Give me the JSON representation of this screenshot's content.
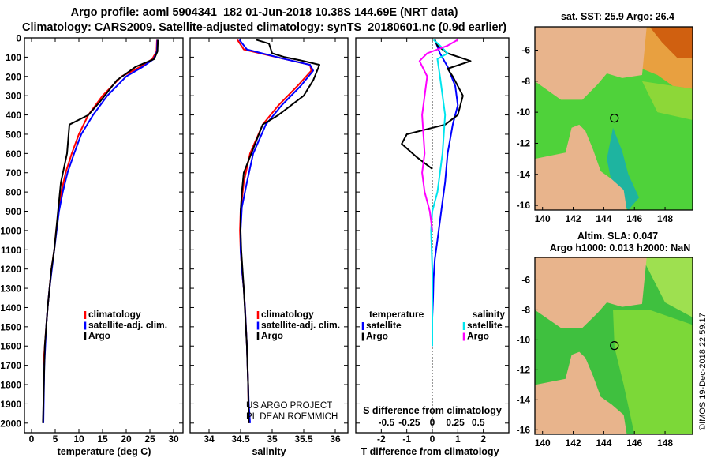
{
  "header": {
    "title_line1": "Argo profile: aoml 5904341_182 01-Jun-2018 10.38S 144.69E (NRT data)",
    "title_line2": "Climatology: CARS2009. Satellite-adjusted climatology: synTS_20180601.nc (0.9d earlier)"
  },
  "colors": {
    "climatology": "#ff0000",
    "satellite": "#0000ff",
    "argo": "#000000",
    "sat_salinity": "#00e5ee",
    "argo_salinity": "#ff00ff",
    "land": "#e8b48c",
    "ocean_green": "#3ccc3c"
  },
  "depth_axis": {
    "ticks": [
      0,
      100,
      200,
      300,
      400,
      500,
      600,
      700,
      800,
      900,
      1000,
      1100,
      1200,
      1300,
      1400,
      1500,
      1600,
      1700,
      1800,
      1900,
      2000
    ],
    "range": [
      0,
      2050
    ]
  },
  "chart_data": [
    {
      "type": "line",
      "name": "temperature-panel",
      "xlabel": "temperature (deg C)",
      "ylabel": "pressure (dbar)",
      "xlim": [
        -1.5,
        32
      ],
      "xticks": [
        0,
        5,
        10,
        15,
        20,
        25,
        30
      ],
      "legend": {
        "position": "bottom-right",
        "entries": [
          "climatology",
          "satellite-adj. clim.",
          "Argo"
        ]
      },
      "series": [
        {
          "name": "climatology",
          "color": "#ff0000",
          "x": [
            26.5,
            26.4,
            25.5,
            23,
            19,
            15,
            12,
            10,
            8.5,
            7.2,
            6.3,
            5.7,
            5.2,
            4.8,
            4.2,
            3.8,
            3.4,
            3.1,
            2.8,
            2.5
          ],
          "y": [
            10,
            70,
            110,
            150,
            200,
            300,
            400,
            500,
            600,
            700,
            800,
            900,
            1000,
            1100,
            1200,
            1300,
            1400,
            1500,
            1600,
            1700
          ]
        },
        {
          "name": "satellite-adj. clim.",
          "color": "#0000ff",
          "x": [
            26.6,
            26.5,
            25.8,
            23.5,
            20,
            16,
            13,
            10.5,
            9,
            7.6,
            6.6,
            5.8,
            5.3,
            4.8,
            4.3,
            3.8,
            3.4,
            3.1,
            2.9,
            2.7,
            2.6,
            2.5
          ],
          "y": [
            10,
            70,
            110,
            150,
            200,
            300,
            400,
            500,
            600,
            700,
            800,
            900,
            1000,
            1100,
            1200,
            1300,
            1400,
            1500,
            1600,
            1700,
            1850,
            2000
          ]
        },
        {
          "name": "Argo",
          "color": "#000000",
          "x": [
            26.7,
            26.6,
            25.9,
            22,
            18,
            14.5,
            12,
            8,
            7.5,
            6.2,
            5.6,
            4.8,
            4.2,
            3.8,
            3.4,
            3.1,
            2.8,
            2.6,
            2.4
          ],
          "y": [
            10,
            70,
            110,
            150,
            220,
            330,
            400,
            450,
            600,
            750,
            900,
            1100,
            1200,
            1300,
            1400,
            1500,
            1600,
            1800,
            2000
          ]
        }
      ]
    },
    {
      "type": "line",
      "name": "salinity-panel",
      "xlabel": "salinity",
      "xlim": [
        33.7,
        36.2
      ],
      "xticks": [
        34,
        34.5,
        35,
        35.5,
        36
      ],
      "legend": {
        "position": "bottom-right",
        "entries": [
          "climatology",
          "satellite-adj. clim.",
          "Argo"
        ]
      },
      "annotation": [
        "US ARGO PROJECT",
        "PI: DEAN ROEMMICH"
      ],
      "series": [
        {
          "name": "climatology",
          "color": "#ff0000",
          "x": [
            34.45,
            34.55,
            35.2,
            35.6,
            35.62,
            35.4,
            35.1,
            34.85,
            34.65,
            34.55,
            34.5,
            34.49,
            34.5,
            34.52,
            34.55,
            34.57,
            34.6,
            34.62,
            34.63
          ],
          "y": [
            10,
            60,
            110,
            140,
            170,
            250,
            350,
            450,
            600,
            750,
            900,
            1000,
            1100,
            1200,
            1300,
            1400,
            1600,
            1800,
            2000
          ]
        },
        {
          "name": "satellite-adj. clim.",
          "color": "#0000ff",
          "x": [
            34.48,
            34.6,
            35.2,
            35.6,
            35.65,
            35.45,
            35.15,
            34.9,
            34.7,
            34.6,
            34.52,
            34.5,
            34.5,
            34.52,
            34.55,
            34.57,
            34.6,
            34.62,
            34.63,
            34.65
          ],
          "y": [
            10,
            60,
            110,
            140,
            170,
            250,
            350,
            450,
            600,
            750,
            880,
            1000,
            1100,
            1200,
            1300,
            1400,
            1600,
            1800,
            1900,
            2000
          ]
        },
        {
          "name": "Argo",
          "color": "#000000",
          "x": [
            34.75,
            34.95,
            35.0,
            35.2,
            35.5,
            35.75,
            35.65,
            35.5,
            35.1,
            34.85,
            34.55,
            34.52,
            34.5,
            34.5,
            34.51,
            34.55,
            34.6,
            34.62,
            34.63
          ],
          "y": [
            10,
            30,
            80,
            100,
            120,
            140,
            220,
            300,
            400,
            450,
            700,
            800,
            900,
            1000,
            1100,
            1300,
            1600,
            1800,
            2000
          ]
        }
      ]
    },
    {
      "type": "line",
      "name": "difference-panel",
      "xlabel": "T difference from climatology",
      "xlabel2": "S difference from climatology",
      "xlim": [
        -3,
        3
      ],
      "xticks": [
        -2,
        -1,
        0,
        1,
        2
      ],
      "s_ticks": [
        "-0.5",
        "-0.25",
        "0",
        "0.25",
        "0.5"
      ],
      "legend": {
        "position": "bottom",
        "left_title": "temperature",
        "right_title": "salinity",
        "left": [
          "satellite",
          "Argo"
        ],
        "right": [
          "satellite",
          "Argo"
        ]
      },
      "series": [
        {
          "name": "T satellite",
          "color": "#0000ff",
          "x": [
            0.1,
            0.3,
            0.6,
            0.9,
            1.0,
            0.8,
            0.6,
            0.5,
            0.4,
            0.3,
            0.2,
            0.1,
            0.05,
            0.03,
            0.0,
            0.0,
            0.0
          ],
          "y": [
            10,
            80,
            150,
            250,
            350,
            450,
            600,
            750,
            850,
            950,
            1050,
            1150,
            1250,
            1350,
            1450,
            1550,
            1600
          ]
        },
        {
          "name": "T Argo",
          "color": "#000000",
          "x": [
            0.1,
            0.2,
            0.6,
            1.5,
            0.6,
            0.8,
            1.2,
            1.0,
            0.5,
            -1.0,
            -1.2,
            -0.6,
            0.0
          ],
          "y": [
            10,
            40,
            80,
            120,
            160,
            200,
            300,
            400,
            450,
            500,
            550,
            620,
            680
          ]
        },
        {
          "name": "S satellite",
          "color": "#00e5ee",
          "x": [
            0.05,
            0.3,
            0.6,
            0.2,
            0.3,
            0.5,
            0.4,
            0.3,
            0.2,
            0.0,
            -0.05,
            0.0,
            0.0
          ],
          "y": [
            10,
            40,
            80,
            110,
            200,
            400,
            600,
            700,
            800,
            900,
            1000,
            1200,
            1600
          ]
        },
        {
          "name": "S Argo",
          "color": "#ff00ff",
          "x": [
            1.0,
            0.6,
            -0.2,
            -0.5,
            -0.2,
            -0.4,
            -0.3,
            -0.4,
            -0.3,
            -0.1,
            0.0
          ],
          "y": [
            10,
            40,
            80,
            120,
            200,
            400,
            600,
            700,
            800,
            900,
            1000
          ]
        }
      ]
    },
    {
      "type": "heatmap",
      "name": "sst-map",
      "title": "sat. SST: 25.9 Argo: 26.4",
      "xticks": [
        "140",
        "142",
        "144",
        "146",
        "148"
      ],
      "yticks": [
        "-6",
        "-8",
        "-10",
        "-12",
        "-14",
        "-16"
      ],
      "xlim": [
        139.5,
        149.8
      ],
      "ylim": [
        -16.3,
        -4.5
      ],
      "marker": {
        "lon": 144.69,
        "lat": -10.38
      }
    },
    {
      "type": "heatmap",
      "name": "sla-map",
      "title_line1": "Altim. SLA: 0.047",
      "title_line2": "Argo h1000: 0.013 h2000: NaN",
      "xticks": [
        "140",
        "142",
        "144",
        "146",
        "148"
      ],
      "yticks": [
        "-6",
        "-8",
        "-10",
        "-12",
        "-14",
        "-16"
      ],
      "xlim": [
        139.5,
        149.8
      ],
      "ylim": [
        -16.3,
        -4.5
      ],
      "marker": {
        "lon": 144.69,
        "lat": -10.38
      }
    }
  ],
  "footer": {
    "credit": "©IMOS 19-Dec-2018 22:59:17"
  }
}
